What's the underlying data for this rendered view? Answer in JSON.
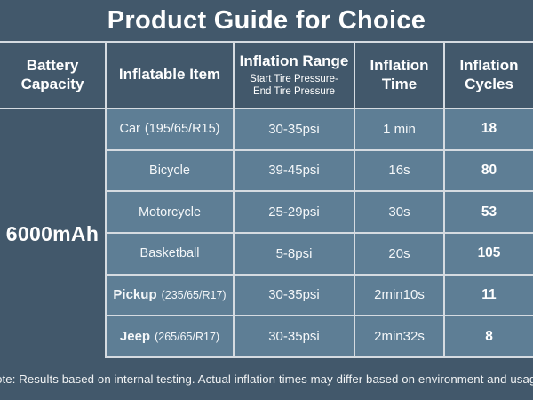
{
  "title": "Product Guide for Choice",
  "colors": {
    "background_dark": "#42586B",
    "cell_light": "#5E7E95",
    "grid_line": "#D5DBE1",
    "text": "#FFFFFF"
  },
  "table": {
    "columns": [
      {
        "label": "Battery Capacity"
      },
      {
        "label": "Inflatable Item"
      },
      {
        "label": "Inflation Range",
        "sublines": [
          "Start Tire Pressure-",
          "End Tire Pressure"
        ]
      },
      {
        "label": "Inflation Time"
      },
      {
        "label": "Inflation Cycles"
      }
    ],
    "battery_capacity": "6000mAh",
    "rows": [
      {
        "item": "Car",
        "item_detail": "(195/65/R15)",
        "range": "30-35psi",
        "time": "1 min",
        "cycles": "18"
      },
      {
        "item": "Bicycle",
        "item_detail": "",
        "range": "39-45psi",
        "time": "16s",
        "cycles": "80"
      },
      {
        "item": "Motorcycle",
        "item_detail": "",
        "range": "25-29psi",
        "time": "30s",
        "cycles": "53"
      },
      {
        "item": "Basketball",
        "item_detail": "",
        "range": "5-8psi",
        "time": "20s",
        "cycles": "105"
      },
      {
        "item": "Pickup",
        "item_detail": "(235/65/R17)",
        "range": "30-35psi",
        "time": "2min10s",
        "cycles": "11"
      },
      {
        "item": "Jeep",
        "item_detail": "(265/65/R17)",
        "range": "30-35psi",
        "time": "2min32s",
        "cycles": "8"
      }
    ]
  },
  "note": "Note: Results based on internal testing. Actual inflation times may differ based on environment and usage.",
  "chart_data": {
    "type": "table",
    "title": "Product Guide for Choice",
    "columns": [
      "Battery Capacity",
      "Inflatable Item",
      "Inflation Range (Start Tire Pressure-End Tire Pressure)",
      "Inflation Time",
      "Inflation Cycles"
    ],
    "rows": [
      [
        "6000mAh",
        "Car (195/65/R15)",
        "30-35psi",
        "1 min",
        18
      ],
      [
        "6000mAh",
        "Bicycle",
        "39-45psi",
        "16s",
        80
      ],
      [
        "6000mAh",
        "Motorcycle",
        "25-29psi",
        "30s",
        53
      ],
      [
        "6000mAh",
        "Basketball",
        "5-8psi",
        "20s",
        105
      ],
      [
        "6000mAh",
        "Pickup (235/65/R17)",
        "30-35psi",
        "2min10s",
        11
      ],
      [
        "6000mAh",
        "Jeep (265/65/R17)",
        "30-35psi",
        "2min32s",
        8
      ]
    ],
    "note": "Note: Results based on internal testing. Actual inflation times may differ based on environment and usage."
  }
}
